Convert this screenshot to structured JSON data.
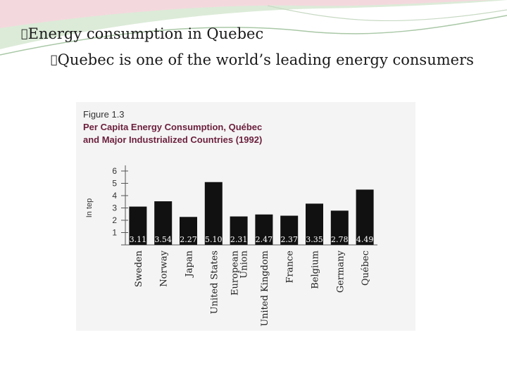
{
  "slide": {
    "bullet_marker": "\u0000",
    "heading": "Energy consumption in Quebec",
    "subpoint": "Quebec is one of the world’s leading energy consumers"
  },
  "figure": {
    "label": "Figure 1.3",
    "title_line1": "Per Capita Energy Consumption, Québec",
    "title_line2": "and Major Industrialized Countries (1992)"
  },
  "chart_data": {
    "type": "bar",
    "title": "Per Capita Energy Consumption, Québec and Major Industrialized Countries (1992)",
    "ylabel": "In tep",
    "xlabel": "",
    "ylim": [
      0,
      6
    ],
    "yticks": [
      "1",
      "2",
      "3",
      "4",
      "5",
      "6"
    ],
    "categories": [
      "Sweden",
      "Norway",
      "Japan",
      "United States",
      "European Union",
      "United Kingdom",
      "France",
      "Belgium",
      "Germany",
      "Québec"
    ],
    "category_lines": [
      [
        "Sweden"
      ],
      [
        "Norway"
      ],
      [
        "Japan"
      ],
      [
        "United States"
      ],
      [
        "European",
        "Union"
      ],
      [
        "United Kingdom"
      ],
      [
        "France"
      ],
      [
        "Belgium"
      ],
      [
        "Germany"
      ],
      [
        "Québec"
      ]
    ],
    "values": [
      3.11,
      3.54,
      2.27,
      5.1,
      2.31,
      2.47,
      2.37,
      3.35,
      2.78,
      4.49
    ],
    "value_labels": [
      "3.11",
      "3.54",
      "2.27",
      "5.10",
      "2.31",
      "2.47",
      "2.37",
      "3.35",
      "2.78",
      "4.49"
    ],
    "bar_color": "#111111",
    "grid": false
  }
}
